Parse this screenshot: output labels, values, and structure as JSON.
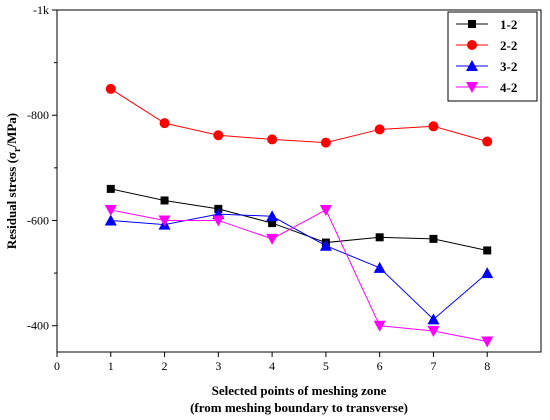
{
  "chart_data": {
    "type": "line",
    "xlabel_line1": "Selected points of meshing zone",
    "xlabel_line2": "(from meshing boundary to transverse)",
    "ylabel_prefix": "Residual stress  (σ",
    "ylabel_sub": "r",
    "ylabel_suffix": "/MPa)",
    "x_ticks": [
      "0",
      "1",
      "2",
      "3",
      "4",
      "5",
      "6",
      "7",
      "8"
    ],
    "y_ticks": [
      {
        "value": 400,
        "label": "-400"
      },
      {
        "value": 600,
        "label": "-600"
      },
      {
        "value": 800,
        "label": "-800"
      },
      {
        "value": 1000,
        "label": "-1k"
      }
    ],
    "xlim": [
      0,
      9
    ],
    "ylim": [
      350,
      1000
    ],
    "legend_position": "top-right",
    "grid": false,
    "series": [
      {
        "name": "1-2",
        "color": "#000000",
        "marker": "square",
        "x": [
          1,
          2,
          3,
          4,
          5,
          6,
          7,
          8
        ],
        "y": [
          660,
          638,
          622,
          595,
          558,
          568,
          565,
          543
        ]
      },
      {
        "name": "2-2",
        "color": "#ff0000",
        "marker": "circle",
        "x": [
          1,
          2,
          3,
          4,
          5,
          6,
          7,
          8
        ],
        "y": [
          850,
          785,
          762,
          754,
          748,
          773,
          779,
          750
        ]
      },
      {
        "name": "3-2",
        "color": "#0000ff",
        "marker": "triangle-up",
        "x": [
          1,
          2,
          3,
          4,
          5,
          6,
          7,
          8
        ],
        "y": [
          600,
          592,
          612,
          608,
          552,
          510,
          412,
          500
        ]
      },
      {
        "name": "4-2",
        "color": "#ff00ff",
        "marker": "triangle-down",
        "x": [
          1,
          2,
          3,
          4,
          5,
          6,
          7,
          8
        ],
        "y": [
          620,
          600,
          600,
          565,
          620,
          400,
          390,
          370
        ]
      }
    ]
  }
}
